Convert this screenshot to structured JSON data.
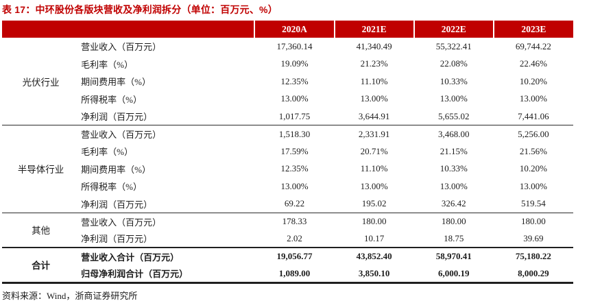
{
  "title": "表 17：中环股份各版块营收及净利润拆分（单位：百万元、%）",
  "source": "资料来源：Wind，浙商证券研究所",
  "colors": {
    "accent_red": "#c00000",
    "header_text": "#ffffff",
    "body_text": "#1c1c1c"
  },
  "columns": [
    "2020A",
    "2021E",
    "2022E",
    "2023E"
  ],
  "sections": [
    {
      "name": "光伏行业",
      "rows": [
        {
          "label": "营业收入（百万元）",
          "values": [
            "17,360.14",
            "41,340.49",
            "55,322.41",
            "69,744.22"
          ]
        },
        {
          "label": "毛利率（%）",
          "values": [
            "19.09%",
            "21.23%",
            "22.08%",
            "22.46%"
          ]
        },
        {
          "label": "期间费用率（%）",
          "values": [
            "12.35%",
            "11.10%",
            "10.33%",
            "10.20%"
          ]
        },
        {
          "label": "所得税率（%）",
          "values": [
            "13.00%",
            "13.00%",
            "13.00%",
            "13.00%"
          ]
        },
        {
          "label": "净利润（百万元）",
          "values": [
            "1,017.75",
            "3,644.91",
            "5,655.02",
            "7,441.06"
          ]
        }
      ]
    },
    {
      "name": "半导体行业",
      "rows": [
        {
          "label": "营业收入（百万元）",
          "values": [
            "1,518.30",
            "2,331.91",
            "3,468.00",
            "5,256.00"
          ]
        },
        {
          "label": "毛利率（%）",
          "values": [
            "17.59%",
            "20.71%",
            "21.15%",
            "21.56%"
          ]
        },
        {
          "label": "期间费用率（%）",
          "values": [
            "12.35%",
            "11.10%",
            "10.33%",
            "10.20%"
          ]
        },
        {
          "label": "所得税率（%）",
          "values": [
            "13.00%",
            "13.00%",
            "13.00%",
            "13.00%"
          ]
        },
        {
          "label": "净利润（百万元）",
          "values": [
            "69.22",
            "195.02",
            "326.42",
            "519.54"
          ]
        }
      ]
    },
    {
      "name": "其他",
      "rows": [
        {
          "label": "营业收入（百万元）",
          "values": [
            "178.33",
            "180.00",
            "180.00",
            "180.00"
          ]
        },
        {
          "label": "净利润（百万元）",
          "values": [
            "2.02",
            "10.17",
            "18.75",
            "39.69"
          ]
        }
      ]
    },
    {
      "name": "合计",
      "rows": [
        {
          "label": "营业收入合计（百万元）",
          "values": [
            "19,056.77",
            "43,852.40",
            "58,970.41",
            "75,180.22"
          ]
        },
        {
          "label": "归母净利润合计（百万元）",
          "values": [
            "1,089.00",
            "3,850.10",
            "6,000.19",
            "8,000.29"
          ]
        }
      ]
    }
  ]
}
